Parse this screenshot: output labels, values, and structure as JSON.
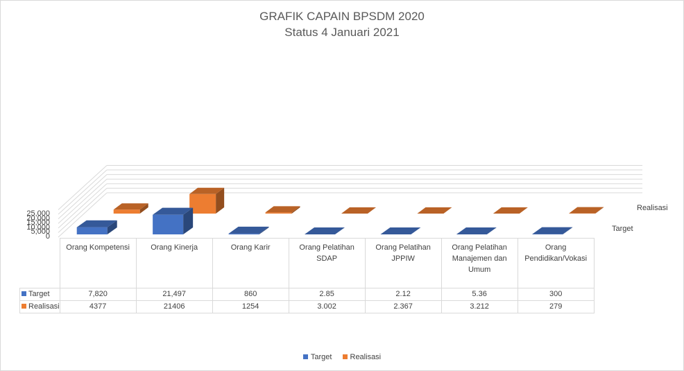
{
  "chart_data": {
    "type": "bar",
    "title": "GRAFIK CAPAIN BPSDM 2020",
    "subtitle": "Status 4 Januari 2021",
    "categories": [
      "Orang Kompetensi",
      "Orang Kinerja",
      "Orang Karir",
      "Orang Pelatihan SDAP",
      "Orang Pelatihan JPPIW",
      "Orang Pelatihan Manajemen dan Umum",
      "Orang Pendidikan/Vokasi"
    ],
    "series": [
      {
        "name": "Target",
        "color": "#4472c4",
        "values": [
          7820,
          21497,
          860,
          2.85,
          2.12,
          5.36,
          300
        ],
        "labels": [
          "7,820",
          "21,497",
          "860",
          "2.85",
          "2.12",
          "5.36",
          "300"
        ]
      },
      {
        "name": "Realisasi",
        "color": "#ed7d31",
        "values": [
          4377,
          21406,
          1254,
          3.002,
          2.367,
          3.212,
          279
        ],
        "labels": [
          "4377",
          "21406",
          "1254",
          "3.002",
          "2.367",
          "3.212",
          "279"
        ]
      }
    ],
    "yticks": [
      "0",
      "5,000",
      "10,000",
      "15,000",
      "20,000",
      "25,000"
    ],
    "ylim": [
      0,
      30000
    ],
    "grid": true,
    "legend_position": "bottom",
    "data_table": true
  }
}
